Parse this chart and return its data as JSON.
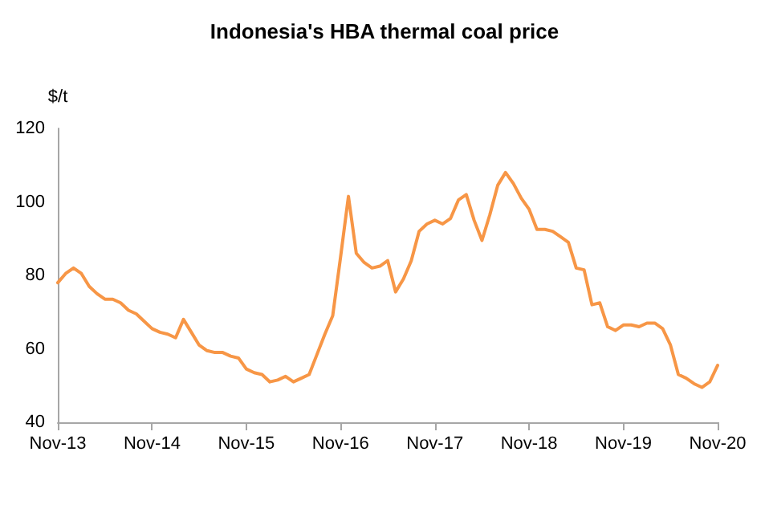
{
  "chart_data": {
    "type": "line",
    "title": "Indonesia's HBA thermal coal price",
    "ylabel": "$/t",
    "categories": [
      "Nov-13",
      null,
      null,
      null,
      null,
      null,
      null,
      null,
      null,
      null,
      null,
      null,
      "Nov-14",
      null,
      null,
      null,
      null,
      null,
      null,
      null,
      null,
      null,
      null,
      null,
      "Nov-15",
      null,
      null,
      null,
      null,
      null,
      null,
      null,
      null,
      null,
      null,
      null,
      "Nov-16",
      null,
      null,
      null,
      null,
      null,
      null,
      null,
      null,
      null,
      null,
      null,
      "Nov-17",
      null,
      null,
      null,
      null,
      null,
      null,
      null,
      null,
      null,
      null,
      null,
      "Nov-18",
      null,
      null,
      null,
      null,
      null,
      null,
      null,
      null,
      null,
      null,
      null,
      "Nov-19",
      null,
      null,
      null,
      null,
      null,
      null,
      null,
      null,
      null,
      null,
      null,
      "Nov-20"
    ],
    "series": [
      {
        "color": "#f79646",
        "values": [
          78,
          80.5,
          82,
          80.5,
          77,
          75,
          73.5,
          73.5,
          72.5,
          70.5,
          69.5,
          67.5,
          65.5,
          64.5,
          64,
          63,
          68,
          64.5,
          61,
          59.5,
          59,
          59,
          58,
          57.5,
          54.5,
          53.5,
          53,
          51,
          51.5,
          52.5,
          51,
          52,
          53,
          58.5,
          64,
          69,
          85,
          101.5,
          86,
          83.5,
          82,
          82.5,
          84,
          75.5,
          79,
          84,
          92,
          94,
          95,
          94,
          95.5,
          100.5,
          102,
          95,
          89.5,
          96.5,
          104.5,
          108,
          105,
          101,
          98,
          92.5,
          92.5,
          92,
          90.5,
          89,
          82,
          81.5,
          72,
          72.5,
          66,
          65,
          66.5,
          66.5,
          66,
          67,
          67,
          65.5,
          61,
          53,
          52,
          50.5,
          49.5,
          51,
          55.5
        ]
      }
    ],
    "ylim": [
      40,
      120
    ],
    "yticks": [
      40,
      60,
      80,
      100,
      120
    ],
    "grid": false,
    "marker": "none",
    "line_style": "solid"
  }
}
